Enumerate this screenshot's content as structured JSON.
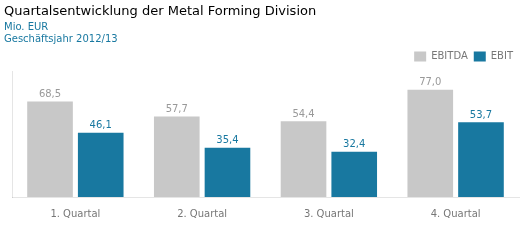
{
  "chart_data": {
    "type": "bar",
    "title": "Quartalsentwicklung der Metal Forming Division",
    "subtitle": [
      "Mio. EUR",
      "Geschäftsjahr 2012/13"
    ],
    "categories": [
      "1. Quartal",
      "2. Quartal",
      "3. Quartal",
      "4. Quartal"
    ],
    "series": [
      {
        "name": "EBITDA",
        "color": "#c8c8c8",
        "values": [
          68.5,
          57.7,
          54.4,
          77.0
        ],
        "value_labels": [
          "68,5",
          "57,7",
          "54,4",
          "77,0"
        ]
      },
      {
        "name": "EBIT",
        "color": "#1878a0",
        "values": [
          46.1,
          35.4,
          32.4,
          53.7
        ],
        "value_labels": [
          "46,1",
          "35,4",
          "32,4",
          "53,7"
        ]
      }
    ],
    "ylim": [
      0,
      90
    ],
    "grid": false,
    "legend": "upper right",
    "data_labels": true,
    "tick_labels": "x"
  }
}
